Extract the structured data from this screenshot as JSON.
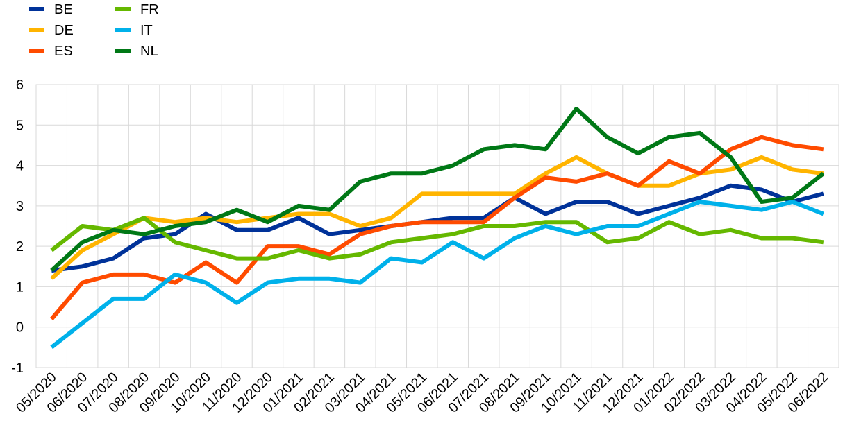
{
  "chart_data": {
    "type": "line",
    "title": "",
    "xlabel": "",
    "ylabel": "",
    "ylim": [
      -1,
      6
    ],
    "yticks": [
      "-1",
      "0",
      "1",
      "2",
      "3",
      "4",
      "5",
      "6"
    ],
    "grid": true,
    "legend_position": "top-left",
    "categories": [
      "05/2020",
      "06/2020",
      "07/2020",
      "08/2020",
      "09/2020",
      "10/2020",
      "11/2020",
      "12/2020",
      "01/2021",
      "02/2021",
      "03/2021",
      "04/2021",
      "05/2021",
      "06/2021",
      "07/2021",
      "08/2021",
      "09/2021",
      "10/2021",
      "11/2021",
      "12/2021",
      "01/2022",
      "02/2022",
      "03/2022",
      "04/2022",
      "05/2022",
      "06/2022"
    ],
    "series": [
      {
        "name": "BE",
        "color": "#003299",
        "values": [
          1.4,
          1.5,
          1.7,
          2.2,
          2.3,
          2.8,
          2.4,
          2.4,
          2.7,
          2.3,
          2.4,
          2.5,
          2.6,
          2.7,
          2.7,
          3.2,
          2.8,
          3.1,
          3.1,
          2.8,
          3.0,
          3.2,
          3.5,
          3.4,
          3.1,
          3.3
        ]
      },
      {
        "name": "DE",
        "color": "#FFB400",
        "values": [
          1.2,
          1.9,
          2.3,
          2.7,
          2.6,
          2.7,
          2.6,
          2.7,
          2.8,
          2.8,
          2.5,
          2.7,
          3.3,
          3.3,
          3.3,
          3.3,
          3.8,
          4.2,
          3.8,
          3.5,
          3.5,
          3.8,
          3.9,
          4.2,
          3.9,
          3.8
        ]
      },
      {
        "name": "ES",
        "color": "#FF4B00",
        "values": [
          0.2,
          1.1,
          1.3,
          1.3,
          1.1,
          1.6,
          1.1,
          2.0,
          2.0,
          1.8,
          2.3,
          2.5,
          2.6,
          2.6,
          2.6,
          3.2,
          3.7,
          3.6,
          3.8,
          3.5,
          4.1,
          3.8,
          4.4,
          4.7,
          4.5,
          4.4
        ]
      },
      {
        "name": "FR",
        "color": "#65B800",
        "values": [
          1.9,
          2.5,
          2.4,
          2.7,
          2.1,
          1.9,
          1.7,
          1.7,
          1.9,
          1.7,
          1.8,
          2.1,
          2.2,
          2.3,
          2.5,
          2.5,
          2.6,
          2.6,
          2.1,
          2.2,
          2.6,
          2.3,
          2.4,
          2.2,
          2.2,
          2.1
        ]
      },
      {
        "name": "IT",
        "color": "#00B1EA",
        "values": [
          -0.5,
          0.1,
          0.7,
          0.7,
          1.3,
          1.1,
          0.6,
          1.1,
          1.2,
          1.2,
          1.1,
          1.7,
          1.6,
          2.1,
          1.7,
          2.2,
          2.5,
          2.3,
          2.5,
          2.5,
          2.8,
          3.1,
          3.0,
          2.9,
          3.1,
          2.8
        ]
      },
      {
        "name": "NL",
        "color": "#007816",
        "values": [
          1.4,
          2.1,
          2.4,
          2.3,
          2.5,
          2.6,
          2.9,
          2.6,
          3.0,
          2.9,
          3.6,
          3.8,
          3.8,
          4.0,
          4.4,
          4.5,
          4.4,
          5.4,
          4.7,
          4.3,
          4.7,
          4.8,
          4.2,
          3.1,
          3.2,
          3.8
        ]
      }
    ]
  }
}
